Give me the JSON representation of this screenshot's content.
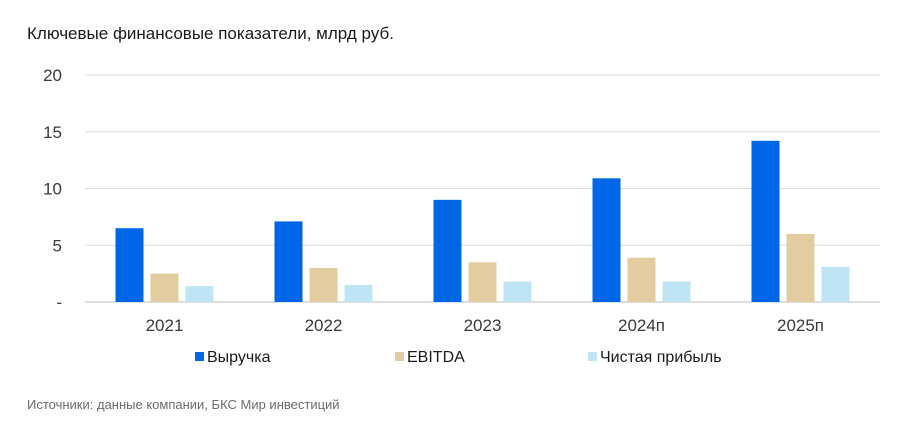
{
  "title": "Ключевые финансовые показатели, млрд руб.",
  "source": "Источники: данные компании, БКС Мир инвестиций",
  "chart_data": {
    "type": "bar",
    "categories": [
      "2021",
      "2022",
      "2023",
      "2024п",
      "2025п"
    ],
    "series": [
      {
        "name": "Выручка",
        "color": "#0066e8",
        "values": [
          6.5,
          7.1,
          9.0,
          10.9,
          14.2
        ]
      },
      {
        "name": "EBITDA",
        "color": "#e3cc9f",
        "values": [
          2.5,
          3.0,
          3.5,
          3.9,
          6.0
        ]
      },
      {
        "name": "Чистая прибыль",
        "color": "#bfe4f5",
        "values": [
          1.4,
          1.5,
          1.8,
          1.8,
          3.1
        ]
      }
    ],
    "ylim": [
      0,
      20
    ],
    "yticks": [
      {
        "value": 0,
        "label": "-"
      },
      {
        "value": 5,
        "label": "5"
      },
      {
        "value": 10,
        "label": "10"
      },
      {
        "value": 15,
        "label": "15"
      },
      {
        "value": 20,
        "label": "20"
      }
    ],
    "grid": true,
    "legend": "bottom"
  }
}
